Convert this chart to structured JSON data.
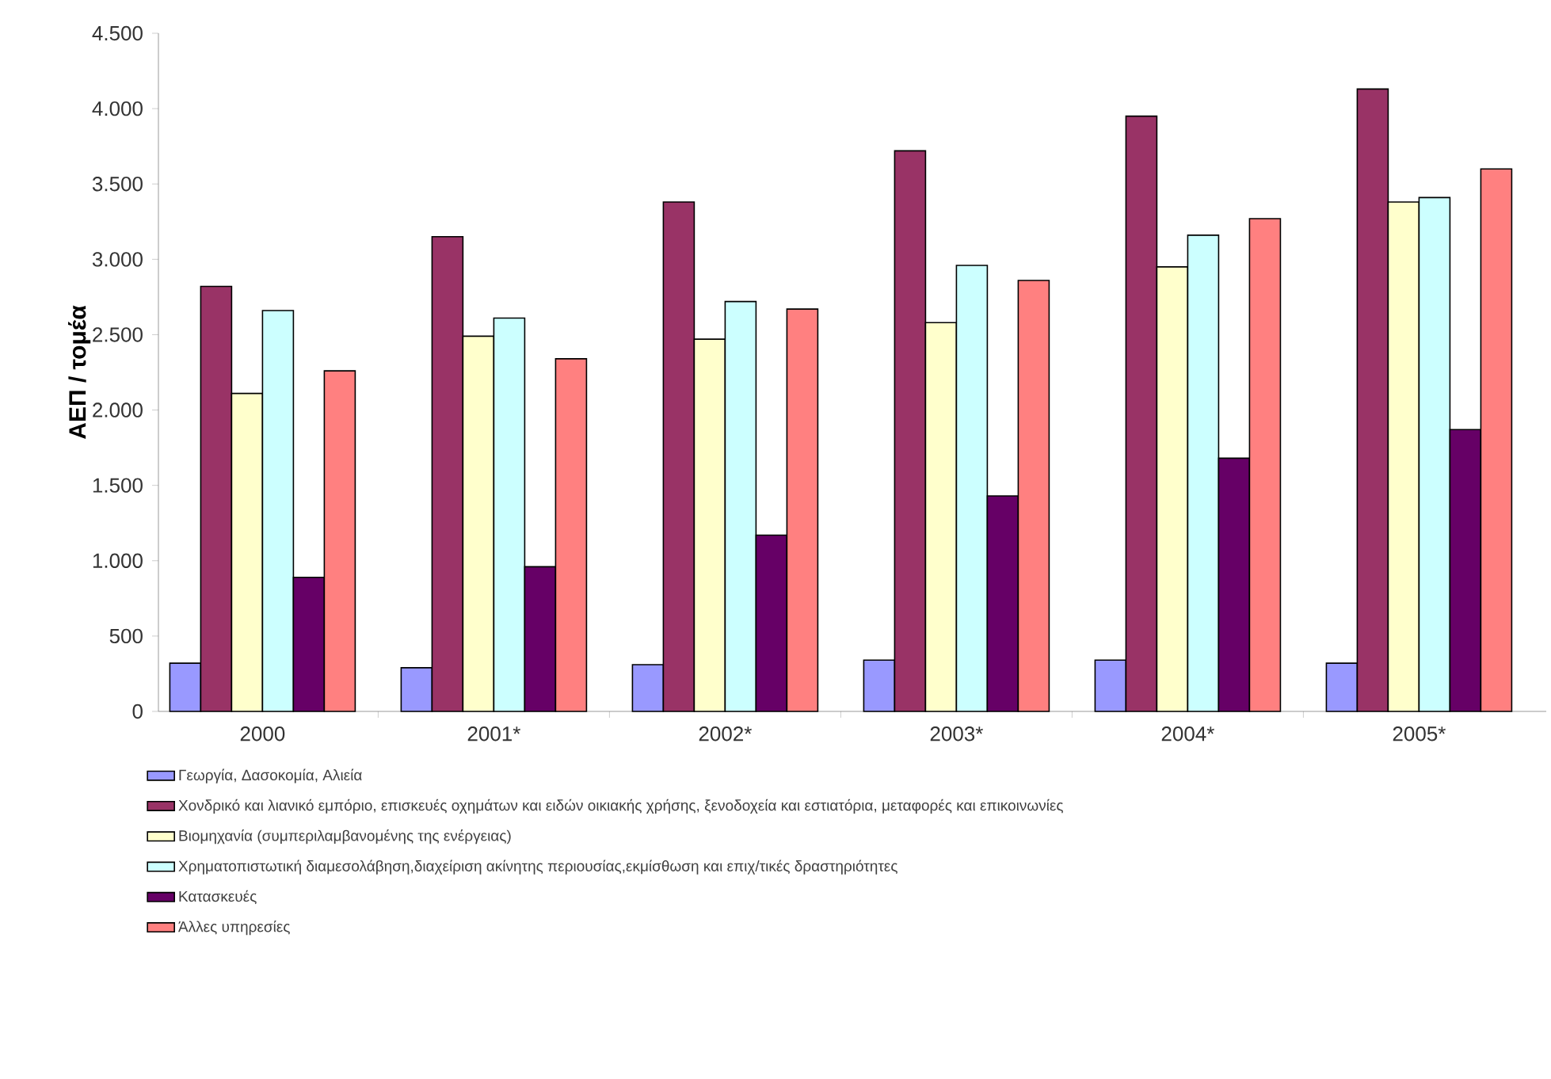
{
  "chart_data": {
    "type": "bar",
    "ylabel": "ΑΕΠ / τομέα",
    "categories": [
      "2000",
      "2001*",
      "2002*",
      "2003*",
      "2004*",
      "2005*"
    ],
    "series": [
      {
        "name": "Γεωργία, Δασοκομία, Αλιεία",
        "color": "#9999ff",
        "values": [
          320,
          290,
          310,
          340,
          340,
          320
        ]
      },
      {
        "name": "Χονδρικό και λιανικό εμπόριο, επισκευές οχημάτων και ειδών οικιακής χρήσης, ξενοδοχεία και εστιατόρια, μεταφορές και επικοινωνίες",
        "color": "#993366",
        "values": [
          2820,
          3150,
          3380,
          3720,
          3950,
          4130
        ]
      },
      {
        "name": "Βιομηχανία (συμπεριλαμβανομένης της ενέργειας)",
        "color": "#ffffcc",
        "values": [
          2110,
          2490,
          2470,
          2580,
          2950,
          3380
        ]
      },
      {
        "name": "Χρηματοπιστωτική διαμεσολάβηση,διαχείριση ακίνητης περιουσίας,εκμίσθωση και επιχ/τικές δραστηριότητες",
        "color": "#ccffff",
        "values": [
          2660,
          2610,
          2720,
          2960,
          3160,
          3410
        ]
      },
      {
        "name": "Κατασκευές",
        "color": "#660066",
        "values": [
          890,
          960,
          1170,
          1430,
          1680,
          1870
        ]
      },
      {
        "name": "Άλλες υπηρεσίες",
        "color": "#ff8080",
        "values": [
          2260,
          2340,
          2670,
          2860,
          3270,
          3600
        ]
      }
    ],
    "ylim": [
      0,
      4500
    ],
    "yticks": [
      0,
      500,
      {
        "value": 1000,
        "label": "1.000"
      },
      {
        "value": 1500,
        "label": "1.500"
      },
      {
        "value": 2000,
        "label": "2.000"
      },
      {
        "value": 2500,
        "label": "2.500"
      },
      {
        "value": 3000,
        "label": "3.000"
      },
      {
        "value": 3500,
        "label": "3.500"
      },
      {
        "value": 4000,
        "label": "4.000"
      },
      {
        "value": 4500,
        "label": "4.500"
      }
    ],
    "legend": "bottom"
  }
}
